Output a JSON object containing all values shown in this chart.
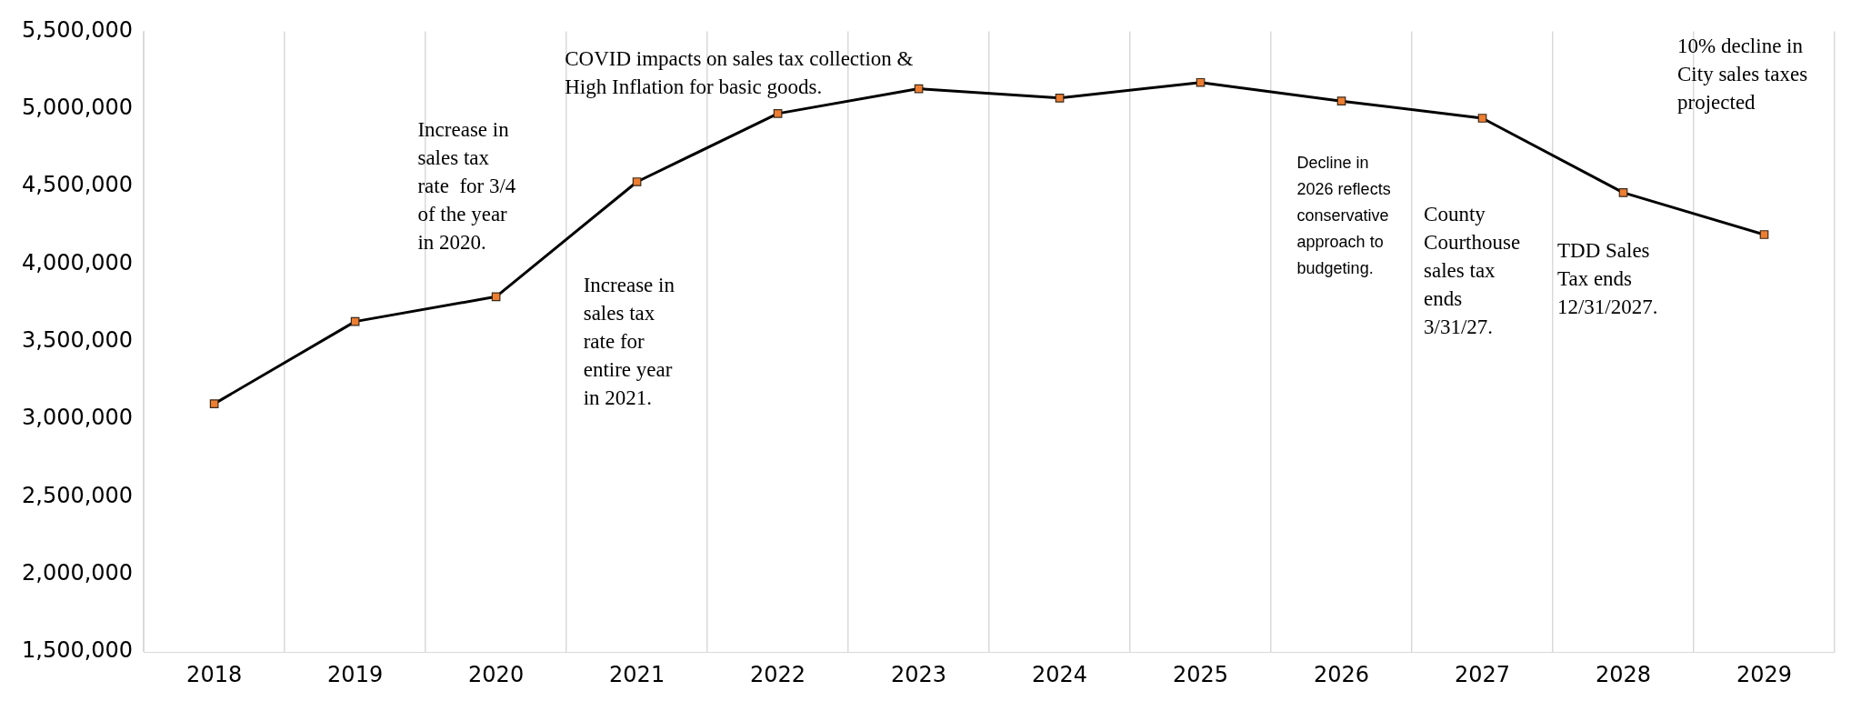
{
  "chart_data": {
    "type": "line",
    "categories": [
      "2018",
      "2019",
      "2020",
      "2021",
      "2022",
      "2023",
      "2024",
      "2025",
      "2026",
      "2027",
      "2028",
      "2029"
    ],
    "series": [
      {
        "color": "#000000",
        "colors": [
          "#ed7d31",
          "#ed7d31",
          "#ed7d31",
          "#ed7d31",
          "#ed7d31",
          "#ed7d31",
          "#ed7d31",
          "#ed7d31",
          "#ed7d31",
          "#ed7d31",
          "#ed7d31",
          "#ed7d31"
        ],
        "values": [
          3100000,
          3630000,
          3790000,
          4530000,
          4970000,
          5130000,
          5070000,
          5170000,
          5050000,
          4940000,
          4460000,
          4190000
        ]
      }
    ],
    "ylim": [
      1500000,
      5500000
    ],
    "yticks": [
      {
        "value": 1500000,
        "label": "1,500,000"
      },
      {
        "value": 2000000,
        "label": "2,000,000"
      },
      {
        "value": 2500000,
        "label": "2,500,000"
      },
      {
        "value": 3000000,
        "label": "3,000,000"
      },
      {
        "value": 3500000,
        "label": "3,500,000"
      },
      {
        "value": 4000000,
        "label": "4,000,000"
      },
      {
        "value": 4500000,
        "label": "4,500,000"
      },
      {
        "value": 5000000,
        "label": "5,000,000"
      },
      {
        "value": 5500000,
        "label": "5,500,000"
      }
    ],
    "grid": "x",
    "marker": "square",
    "line_style": "solid",
    "legend": false,
    "annotations": [
      "Increase in\nsales tax\nrate  for 3/4\nof the year\nin 2020.",
      "Increase in\nsales tax\nrate for\nentire year\nin 2021.",
      "COVID impacts on sales tax collection &\nHigh Inflation for basic goods.",
      "Decline in\n2026 reflects\nconservative\napproach to\nbudgeting.",
      "County\nCourthouse\nsales tax\nends\n3/31/27.",
      "TDD Sales\nTax ends\n12/31/2027.",
      "10% decline in\nCity sales taxes\nprojected"
    ]
  }
}
